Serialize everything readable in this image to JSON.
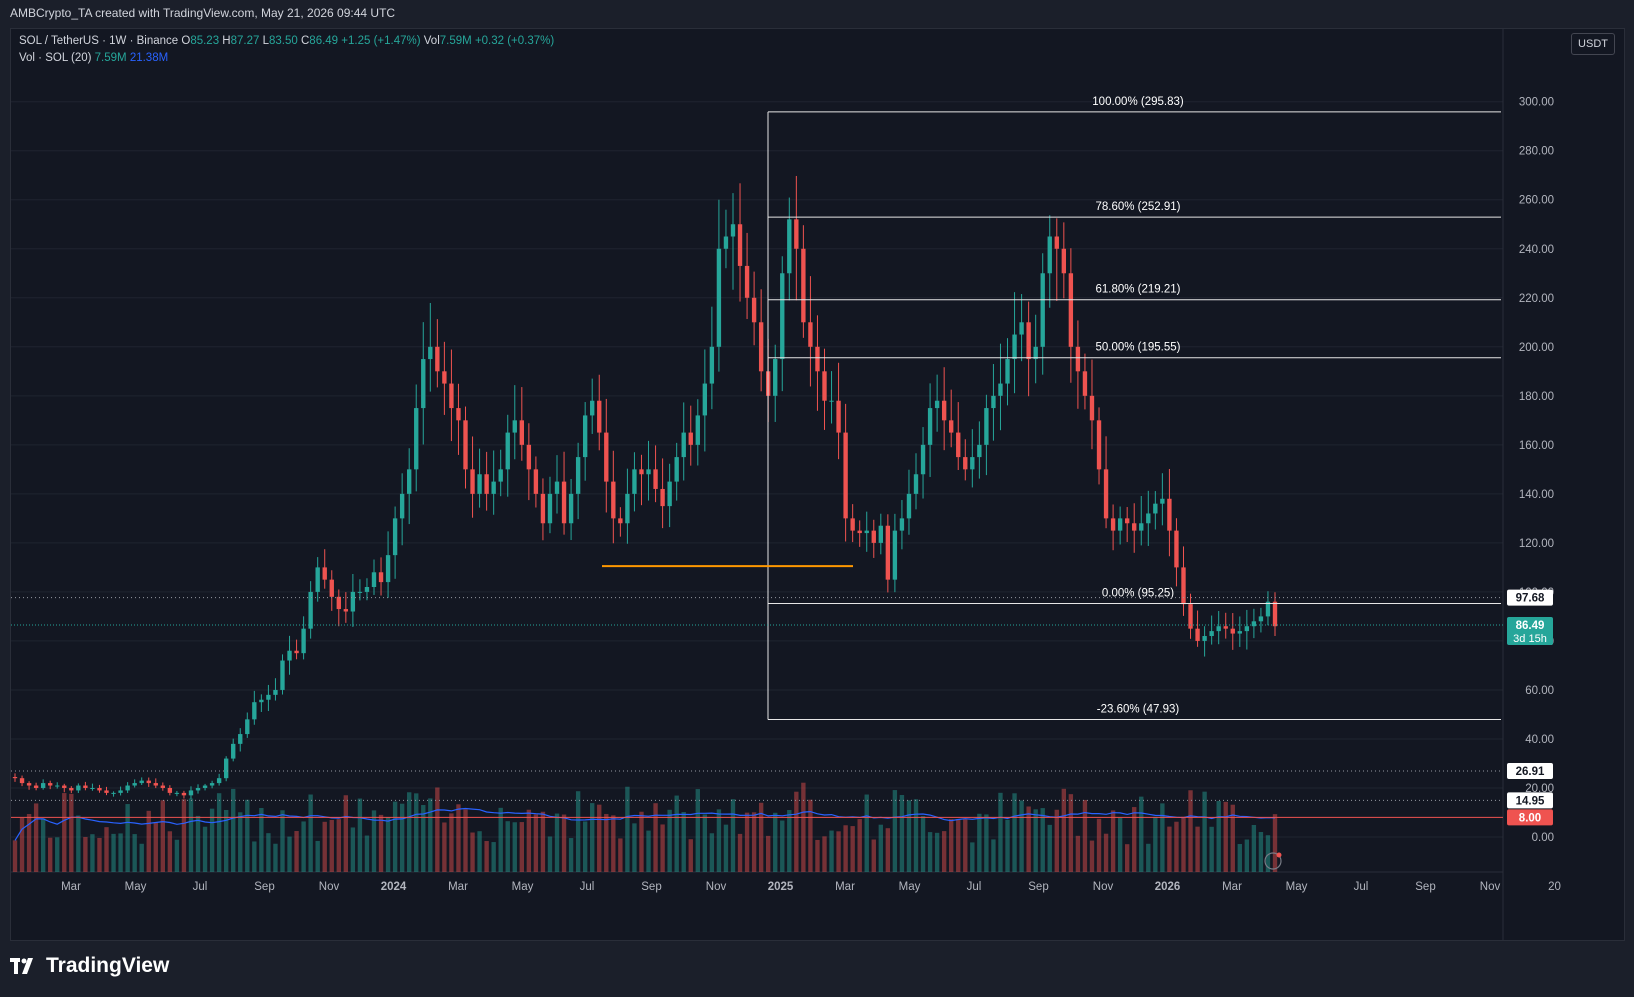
{
  "header": {
    "title": "AMBCrypto_TA created with TradingView.com, May 21, 2026 09:44 UTC"
  },
  "legend": {
    "symbol": "SOL / TetherUS · 1W · Binance",
    "o_label": "O",
    "o": "85.23",
    "h_label": "H",
    "h": "87.27",
    "l_label": "L",
    "l": "83.50",
    "c_label": "C",
    "c": "86.49",
    "change": "+1.25 (+1.47%)",
    "vol_label": "Vol",
    "vol": "7.59M",
    "vol_change": "+0.32 (+0.37%)",
    "volume_title": "Vol · SOL (20)",
    "volume_value": "7.59M",
    "volume_ma": "21.38M"
  },
  "currency": "USDT",
  "footer": {
    "brand": "TradingView",
    "icon": "tradingview-logo-icon"
  },
  "colors": {
    "up": "#26a69a",
    "down": "#ef5350",
    "ma": "#2962ff",
    "fib": "#e6e6e6",
    "support": "#ff9800",
    "bg": "#131722"
  },
  "chart_data": {
    "type": "candlestick",
    "title": "SOL / TetherUS · 1W · Binance",
    "timeframe": "1W",
    "ylim": [
      0,
      320
    ],
    "y_ticks": [
      "0.00",
      "20.00",
      "40.00",
      "60.00",
      "80.00",
      "100.00",
      "120.00",
      "140.00",
      "160.00",
      "180.00",
      "200.00",
      "220.00",
      "240.00",
      "260.00",
      "280.00",
      "300.00"
    ],
    "x_ticks": [
      "Mar",
      "May",
      "Jul",
      "Sep",
      "Nov",
      "2024",
      "Mar",
      "May",
      "Jul",
      "Sep",
      "Nov",
      "2025",
      "Mar",
      "May",
      "Jul",
      "Sep",
      "Nov",
      "2026",
      "Mar",
      "May",
      "Jul",
      "Sep",
      "Nov",
      "20"
    ],
    "fib_levels": [
      {
        "label": "100.00% (295.83)",
        "price": 295.83
      },
      {
        "label": "78.60% (252.91)",
        "price": 252.91
      },
      {
        "label": "61.80% (219.21)",
        "price": 219.21
      },
      {
        "label": "50.00% (195.55)",
        "price": 195.55
      },
      {
        "label": "0.00% (95.25)",
        "price": 95.25
      },
      {
        "label": "-23.60% (47.93)",
        "price": 47.93
      }
    ],
    "support_line": {
      "price": 110.5,
      "from": "Aug 2024",
      "to": "Mar 2025"
    },
    "price_markers": [
      {
        "label": "97.68",
        "price": 97.68,
        "style": "dotted"
      },
      {
        "label": "86.49",
        "sub": "3d 15h",
        "price": 86.49,
        "style": "last"
      },
      {
        "label": "26.91",
        "price": 26.91,
        "style": "dotted"
      },
      {
        "label": "14.95",
        "price": 14.95,
        "style": "dotted"
      },
      {
        "label": "8.00",
        "price": 8.0,
        "style": "red"
      }
    ],
    "weekly_closes_approx": [
      24,
      22,
      21,
      20,
      22,
      21,
      21,
      20,
      19,
      21,
      20,
      20,
      19,
      18,
      18,
      19,
      21,
      22,
      23,
      22,
      21,
      20,
      18,
      18,
      17,
      19,
      20,
      21,
      22,
      24,
      32,
      38,
      42,
      48,
      55,
      56,
      58,
      60,
      72,
      76,
      75,
      85,
      100,
      110,
      105,
      98,
      93,
      92,
      100,
      100,
      102,
      108,
      104,
      115,
      130,
      140,
      150,
      175,
      195,
      200,
      190,
      185,
      175,
      170,
      150,
      140,
      148,
      140,
      145,
      150,
      165,
      170,
      160,
      150,
      140,
      128,
      140,
      145,
      128,
      140,
      155,
      172,
      178,
      165,
      145,
      130,
      128,
      140,
      150,
      148,
      150,
      142,
      135,
      145,
      155,
      165,
      160,
      172,
      185,
      200,
      240,
      245,
      250,
      233,
      220,
      210,
      190,
      180,
      195,
      230,
      252,
      240,
      210,
      200,
      190,
      178,
      178,
      165,
      130,
      125,
      124,
      125,
      120,
      127,
      105,
      125,
      130,
      140,
      148,
      160,
      175,
      178,
      170,
      165,
      155,
      150,
      155,
      160,
      175,
      180,
      185,
      195,
      205,
      210,
      195,
      200,
      230,
      245,
      240,
      230,
      200,
      190,
      180,
      170,
      150,
      130,
      125,
      130,
      128,
      125,
      128,
      132,
      136,
      138,
      125,
      110,
      95,
      85,
      80,
      82,
      84,
      86,
      85,
      83,
      84,
      86,
      88,
      90,
      96,
      86
    ]
  }
}
